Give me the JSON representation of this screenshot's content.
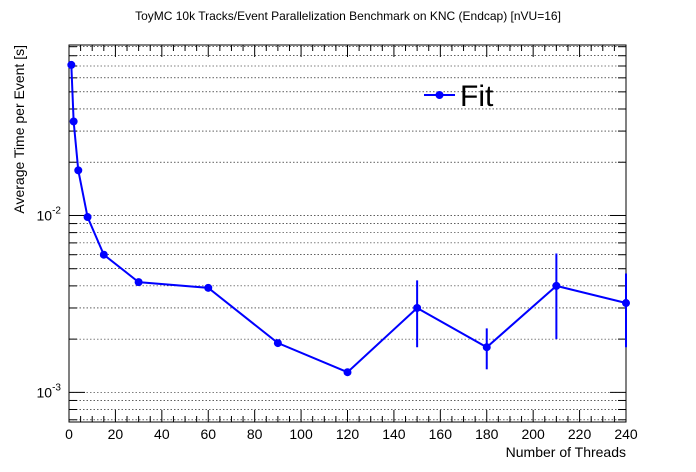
{
  "chart_data": {
    "type": "line",
    "title": "ToyMC 10k Tracks/Event Parallelization Benchmark on KNC (Endcap) [nVU=16]",
    "xlabel": "Number of Threads",
    "ylabel": "Average Time per Event [s]",
    "xlim": [
      0,
      240
    ],
    "ylim": [
      0.00068,
      0.092
    ],
    "yscale": "log",
    "grid": "y-dashed",
    "legend_position": "top-right",
    "x_ticks": [
      "0",
      "20",
      "40",
      "60",
      "80",
      "100",
      "120",
      "140",
      "160",
      "180",
      "200",
      "220",
      "240"
    ],
    "x_tick_values": [
      0,
      20,
      40,
      60,
      80,
      100,
      120,
      140,
      160,
      180,
      200,
      220,
      240
    ],
    "y_major_ticks": [
      {
        "value": 0.01,
        "base": "10",
        "exp": "-2"
      },
      {
        "value": 0.001,
        "base": "10",
        "exp": "-3"
      }
    ],
    "series": [
      {
        "name": "Fit",
        "color": "#0000ff",
        "x": [
          1,
          2,
          4,
          8,
          15,
          30,
          60,
          90,
          120,
          150,
          180,
          210,
          240
        ],
        "y": [
          0.071,
          0.034,
          0.018,
          0.0098,
          0.006,
          0.0042,
          0.0039,
          0.0019,
          0.0013,
          0.003,
          0.0018,
          0.004,
          0.0032
        ],
        "y_err_low": [
          0,
          0,
          0,
          0,
          0,
          0,
          0,
          0,
          0,
          0.0012,
          0.00045,
          0.002,
          0.0014
        ],
        "y_err_high": [
          0,
          0,
          0,
          0,
          0,
          0,
          0,
          0,
          0,
          0.0013,
          0.0005,
          0.0021,
          0.0015
        ]
      }
    ]
  }
}
